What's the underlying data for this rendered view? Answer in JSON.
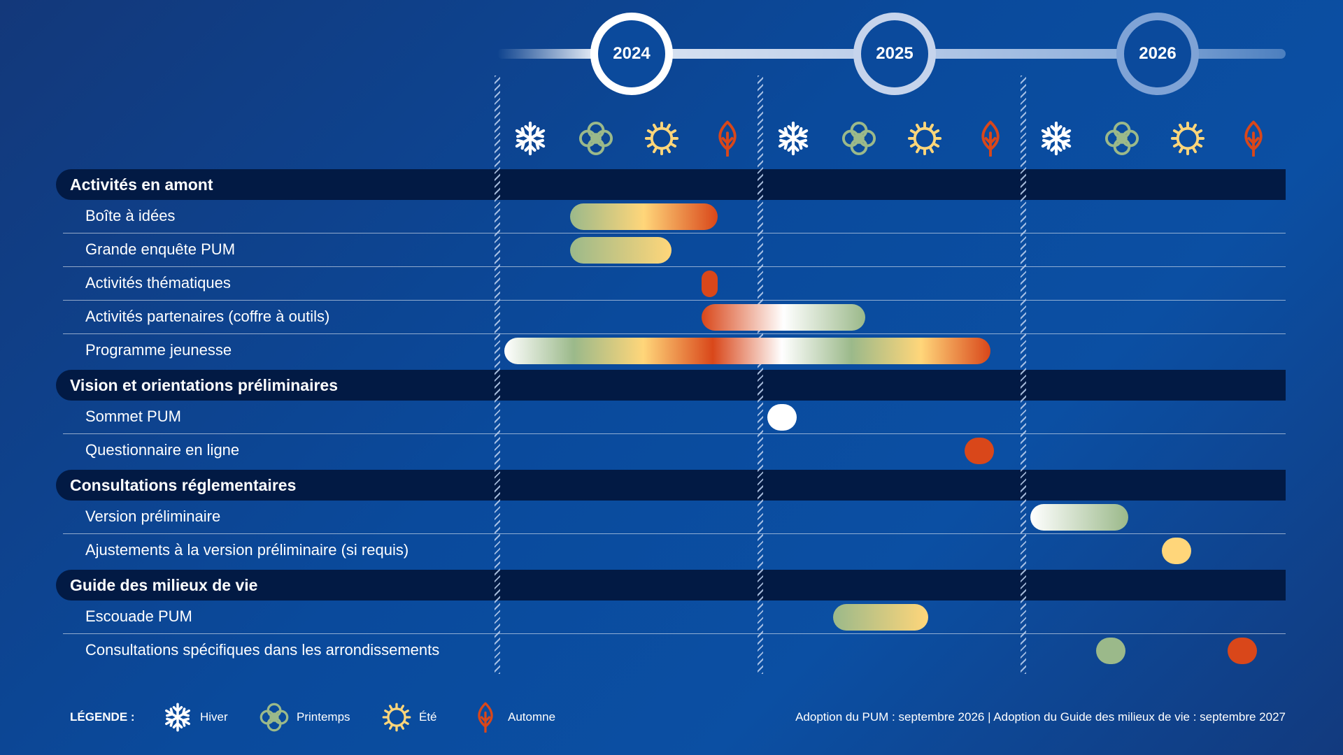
{
  "timeline": {
    "years": [
      "2024",
      "2025",
      "2026"
    ],
    "seasons_per_year": [
      "winter",
      "spring",
      "summer",
      "autumn"
    ]
  },
  "colors": {
    "winter": "#ffffff",
    "spring": "#9bb98a",
    "summer": "#ffd67a",
    "autumn": "#d9471a",
    "category_band": "#021a44",
    "background": "#0b4fa3"
  },
  "icons": {
    "winter": "snowflake-icon",
    "spring": "flower-icon",
    "summer": "sun-icon",
    "autumn": "leaf-icon"
  },
  "sections": [
    {
      "title": "Activités en amont",
      "tasks": [
        {
          "name": "Boîte à idées",
          "start": 1,
          "end": 3.35,
          "colors": [
            "spring",
            "summer",
            "autumn"
          ]
        },
        {
          "name": "Grande enquête PUM",
          "start": 1,
          "end": 2.65,
          "colors": [
            "spring",
            "summer"
          ]
        },
        {
          "name": "Activités thématiques",
          "start": 3,
          "end": 3.35,
          "colors": [
            "autumn"
          ]
        },
        {
          "name": "Activités partenaires (coffre à outils)",
          "start": 3,
          "end": 5.6,
          "colors": [
            "autumn",
            "winter",
            "spring"
          ]
        },
        {
          "name": "Programme jeunesse",
          "start": 0,
          "end": 7.5,
          "colors": [
            "winter",
            "spring",
            "summer",
            "autumn",
            "winter",
            "spring",
            "summer",
            "autumn"
          ]
        }
      ]
    },
    {
      "title": "Vision et orientations préliminaires",
      "tasks": [
        {
          "name": "Sommet PUM",
          "start": 4,
          "end": 4.55,
          "colors": [
            "winter"
          ]
        },
        {
          "name": "Questionnaire en ligne",
          "start": 7,
          "end": 7.55,
          "colors": [
            "autumn"
          ]
        }
      ]
    },
    {
      "title": "Consultations réglementaires",
      "tasks": [
        {
          "name": "Version préliminaire",
          "start": 8,
          "end": 9.6,
          "colors": [
            "winter",
            "spring"
          ]
        },
        {
          "name": "Ajustements à la version préliminaire (si requis)",
          "start": 10,
          "end": 10.55,
          "colors": [
            "summer"
          ]
        }
      ]
    },
    {
      "title": "Guide des milieux de vie",
      "tasks": [
        {
          "name": "Escouade PUM",
          "start": 5,
          "end": 6.55,
          "colors": [
            "spring",
            "summer"
          ]
        },
        {
          "name": "Consultations spécifiques dans les arrondissements",
          "start": 9,
          "end": 9.55,
          "colors": [
            "spring"
          ],
          "extra": {
            "start": 11,
            "end": 11.55,
            "colors": [
              "autumn"
            ]
          }
        }
      ]
    }
  ],
  "legend": {
    "title": "LÉGENDE :",
    "items": [
      {
        "key": "winter",
        "label": "Hiver"
      },
      {
        "key": "spring",
        "label": "Printemps"
      },
      {
        "key": "summer",
        "label": "Été"
      },
      {
        "key": "autumn",
        "label": "Automne"
      }
    ]
  },
  "footnote": "Adoption du PUM : septembre 2026 | Adoption du Guide des milieux de vie : septembre 2027"
}
